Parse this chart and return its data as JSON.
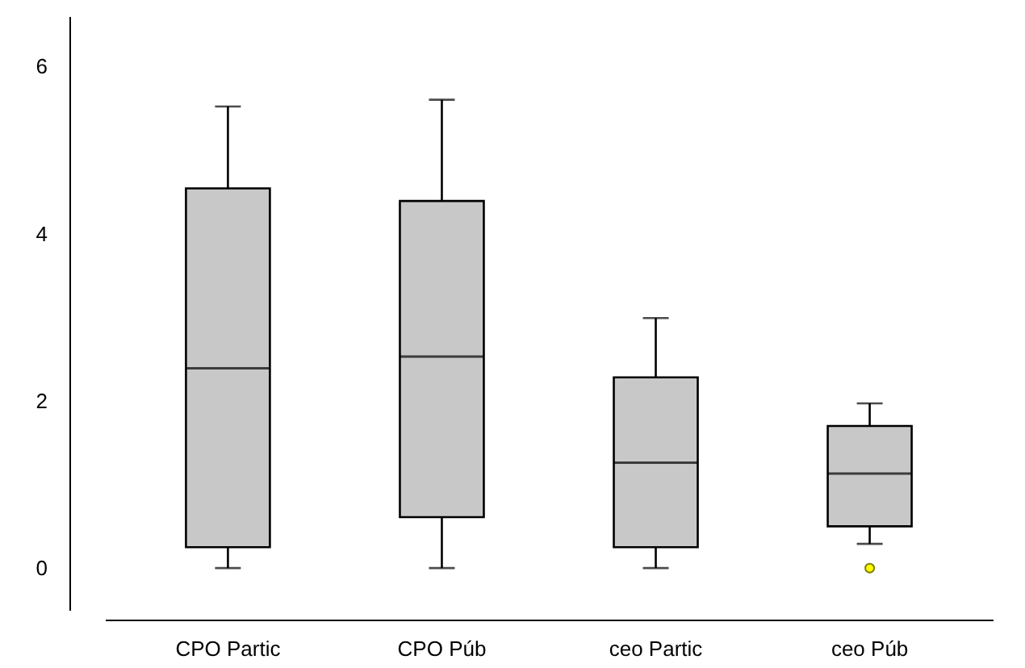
{
  "chart_data": {
    "type": "box",
    "categories": [
      "CPO Partic",
      "CPO Púb",
      "ceo Partic",
      "ceo Púb"
    ],
    "series": [
      {
        "color": "#c8c8c8",
        "boxes": [
          {
            "low": 0,
            "q1": 0.25,
            "median": 2.39,
            "q3": 4.54,
            "high": 5.52
          },
          {
            "low": 0,
            "q1": 0.61,
            "median": 2.53,
            "q3": 4.39,
            "high": 5.6
          },
          {
            "low": 0,
            "q1": 0.25,
            "median": 1.26,
            "q3": 2.28,
            "high": 2.99
          },
          {
            "low": 0.29,
            "q1": 0.5,
            "median": 1.13,
            "q3": 1.7,
            "high": 1.97,
            "outliers": [
              0
            ]
          }
        ]
      }
    ],
    "ylim": [
      -0.5,
      6.6
    ],
    "yticks": [
      0,
      2,
      4,
      6
    ],
    "grid": false
  }
}
